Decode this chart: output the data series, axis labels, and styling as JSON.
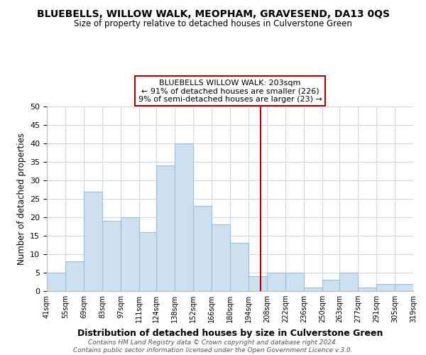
{
  "title": "BLUEBELLS, WILLOW WALK, MEOPHAM, GRAVESEND, DA13 0QS",
  "subtitle": "Size of property relative to detached houses in Culverstone Green",
  "xlabel": "Distribution of detached houses by size in Culverstone Green",
  "ylabel": "Number of detached properties",
  "bar_color": "#cce0f0",
  "bar_edge_color": "#9bbfd8",
  "bins_left": [
    41,
    55,
    69,
    83,
    97,
    111,
    124,
    138,
    152,
    166,
    180,
    194,
    208,
    222,
    236,
    250,
    263,
    277,
    291,
    305
  ],
  "bins_right": [
    55,
    69,
    83,
    97,
    111,
    124,
    138,
    152,
    166,
    180,
    194,
    208,
    222,
    236,
    250,
    263,
    277,
    291,
    305,
    319
  ],
  "counts": [
    5,
    8,
    27,
    19,
    20,
    16,
    34,
    40,
    23,
    18,
    13,
    4,
    5,
    5,
    1,
    3,
    5,
    1,
    2,
    2
  ],
  "tick_labels": [
    "41sqm",
    "55sqm",
    "69sqm",
    "83sqm",
    "97sqm",
    "111sqm",
    "124sqm",
    "138sqm",
    "152sqm",
    "166sqm",
    "180sqm",
    "194sqm",
    "208sqm",
    "222sqm",
    "236sqm",
    "250sqm",
    "263sqm",
    "277sqm",
    "291sqm",
    "305sqm",
    "319sqm"
  ],
  "vline_x": 203,
  "vline_color": "#aa0000",
  "ylim": [
    0,
    50
  ],
  "yticks": [
    0,
    5,
    10,
    15,
    20,
    25,
    30,
    35,
    40,
    45,
    50
  ],
  "annotation_title": "BLUEBELLS WILLOW WALK: 203sqm",
  "annotation_line1": "← 91% of detached houses are smaller (226)",
  "annotation_line2": "9% of semi-detached houses are larger (23) →",
  "annotation_box_color": "#ffffff",
  "annotation_box_edge": "#aa0000",
  "footer_line1": "Contains HM Land Registry data © Crown copyright and database right 2024.",
  "footer_line2": "Contains public sector information licensed under the Open Government Licence v.3.0.",
  "background_color": "#ffffff",
  "grid_color": "#d0d8e4"
}
